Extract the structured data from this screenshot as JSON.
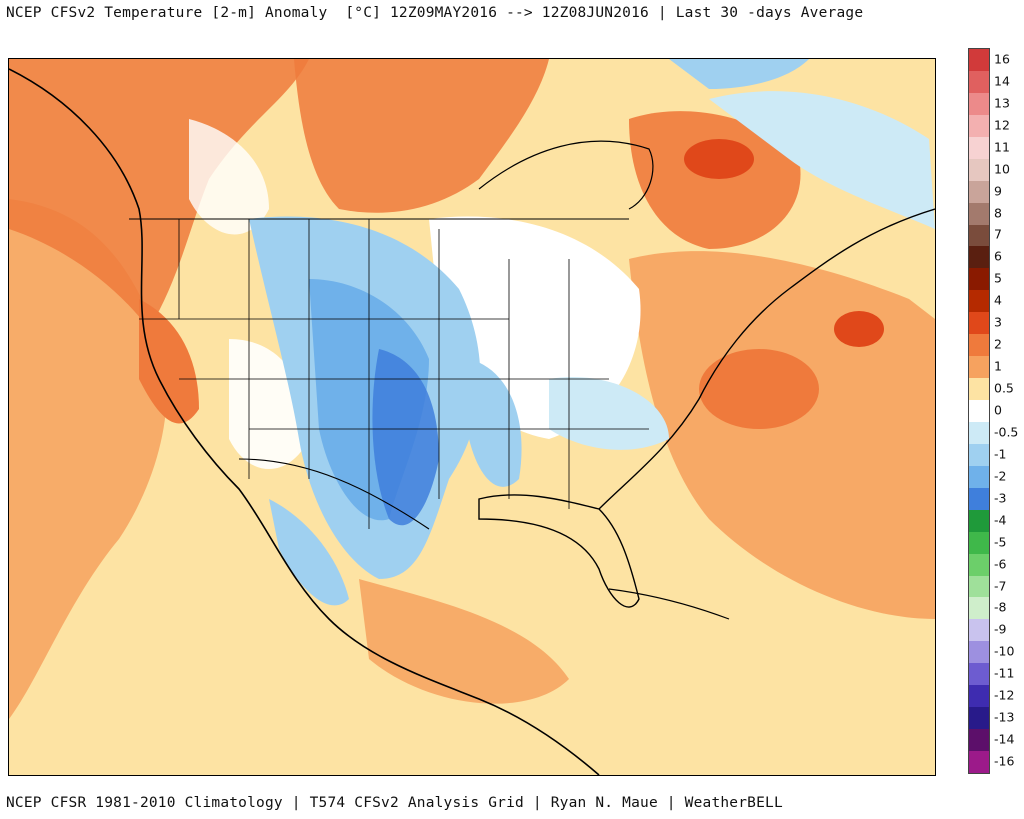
{
  "header": {
    "title": "NCEP CFSv2 Temperature [2-m] Anomaly  [°C] 12Z09MAY2016 --> 12Z08JUN2016 | Last 30 -days Average"
  },
  "footer": {
    "credit": "NCEP CFSR 1981-2010 Climatology | T574 CFSv2 Analysis Grid | Ryan N. Maue | WeatherBELL"
  },
  "legend": {
    "labels": [
      "16",
      "14",
      "13",
      "12",
      "11",
      "10",
      "9",
      "8",
      "7",
      "6",
      "5",
      "4",
      "3",
      "2",
      "1",
      "0.5",
      "0",
      "-0.5",
      "-1",
      "-2",
      "-3",
      "-4",
      "-5",
      "-6",
      "-7",
      "-8",
      "-9",
      "-10",
      "-11",
      "-12",
      "-13",
      "-14",
      "-16"
    ],
    "colors": [
      "#d13a3a",
      "#e0605f",
      "#ec8a8a",
      "#f3b0b0",
      "#f7d2d2",
      "#e6c7c0",
      "#c9a49a",
      "#a37a6d",
      "#7a4c3c",
      "#5a1f10",
      "#8a1a00",
      "#b52a00",
      "#e0481a",
      "#ef7a3c",
      "#f6a25f",
      "#fde3a3",
      "#ffffff",
      "#cdeaf6",
      "#9fd0f0",
      "#6fb1ea",
      "#3f7fdc",
      "#1f9a3a",
      "#3fb84a",
      "#6ccf6a",
      "#9fe09a",
      "#cfeecb",
      "#c9c3ee",
      "#9d90e0",
      "#6d5cd0",
      "#3e2cb0",
      "#281a8a",
      "#5c0f6a",
      "#9c1a8a"
    ]
  },
  "map": {
    "anomaly_zones": [
      "warm-ocean",
      "warm-west-coast",
      "warm-hudson-bay",
      "warm-northeast-atlantic",
      "cold-plains",
      "cold-texas",
      "cold-mexico-sierra",
      "neutral-ohio-valley",
      "cold-northern-quebec",
      "cold-southeast"
    ]
  }
}
